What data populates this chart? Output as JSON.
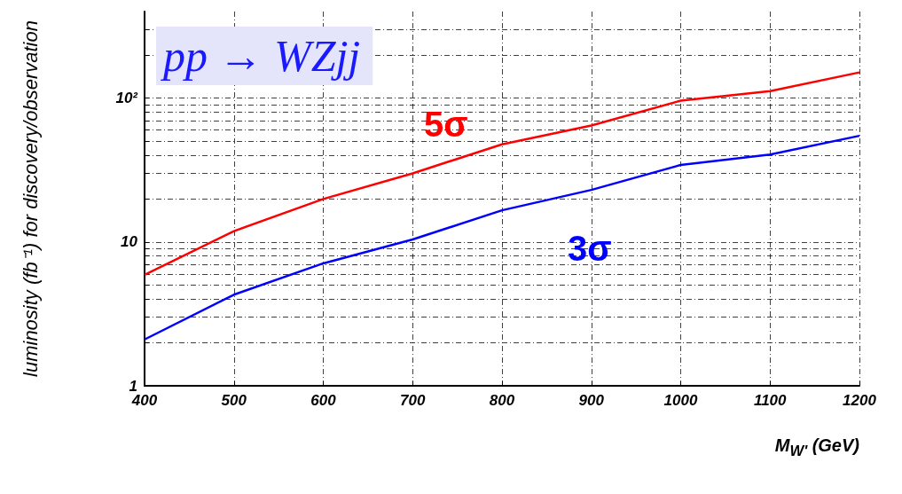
{
  "chart_data": {
    "type": "line",
    "xlabel": "M$_{W'}$ (GeV)",
    "ylabel": "luminosity (fb⁻¹) for discovery/observation",
    "annotations": [
      "pp → WZjj"
    ],
    "x": [
      400,
      500,
      600,
      700,
      800,
      900,
      1000,
      1100,
      1200
    ],
    "series": [
      {
        "name": "5σ",
        "color": "#ff0000",
        "values": [
          5.9,
          11.9,
          19.9,
          30,
          47.7,
          64.5,
          96,
          112,
          151
        ]
      },
      {
        "name": "3σ",
        "color": "#0000ff",
        "values": [
          2.1,
          4.3,
          7.1,
          10.4,
          16.6,
          23,
          34.3,
          40.5,
          54.7
        ]
      }
    ],
    "log": "y",
    "xlim": [
      400,
      1200
    ],
    "xticks": [
      400,
      500,
      600,
      700,
      800,
      900,
      1000,
      1100,
      1200
    ],
    "ylim": [
      1,
      400
    ],
    "yticks": [
      1,
      {
        "value": 2,
        "label": null
      },
      {
        "value": 3,
        "label": null
      },
      {
        "value": 4,
        "label": null
      },
      {
        "value": 5,
        "label": null
      },
      {
        "value": 6,
        "label": null
      },
      {
        "value": 7,
        "label": null
      },
      {
        "value": 8,
        "label": null
      },
      {
        "value": 9,
        "label": null
      },
      10,
      {
        "value": 20,
        "label": null
      },
      {
        "value": 30,
        "label": null
      },
      {
        "value": 40,
        "label": null
      },
      {
        "value": 50,
        "label": null
      },
      {
        "value": 60,
        "label": null
      },
      {
        "value": 70,
        "label": null
      },
      {
        "value": 80,
        "label": null
      },
      {
        "value": 90,
        "label": null
      },
      {
        "value": 100,
        "label": "10²"
      },
      {
        "value": 200,
        "label": null
      },
      {
        "value": 300,
        "label": null
      }
    ],
    "grid": true,
    "marker": "none",
    "line_style": "solid"
  }
}
